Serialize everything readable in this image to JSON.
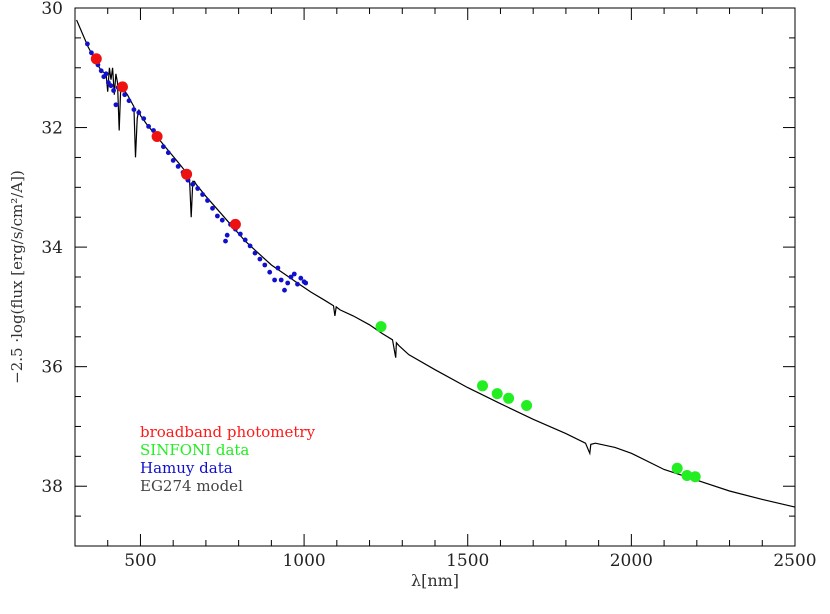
{
  "chart_data": {
    "type": "scatter",
    "title": "",
    "xlabel": "λ[nm]",
    "ylabel": "−2.5 ·log(flux [erg/s/cm²/A])",
    "xlim": [
      300,
      2500
    ],
    "ylim": [
      39,
      30
    ],
    "y_inverted": true,
    "x_ticks": [
      500,
      1000,
      1500,
      2000,
      2500
    ],
    "x_tick_labels": [
      "500",
      "1000",
      "1500",
      "2000",
      "2500"
    ],
    "y_ticks": [
      30,
      32,
      34,
      36,
      38
    ],
    "y_tick_labels": [
      "30",
      "32",
      "34",
      "36",
      "38"
    ],
    "grid": false,
    "legend_placement": "bottom-left",
    "legend": [
      {
        "label": "broadband photometry",
        "color": "#ff1a1a"
      },
      {
        "label": "SINFONI data",
        "color": "#22ee22"
      },
      {
        "label": "Hamuy data",
        "color": "#1010cc"
      },
      {
        "label": "EG274 model",
        "color": "#444444"
      }
    ],
    "series": [
      {
        "name": "broadband photometry",
        "kind": "points",
        "color": "#ee1111",
        "x": [
          365,
          445,
          551,
          641,
          790
        ],
        "y": [
          30.85,
          31.32,
          32.15,
          32.78,
          33.62
        ]
      },
      {
        "name": "SINFONI data",
        "kind": "points",
        "color": "#22ee22",
        "x": [
          1235,
          1545,
          1590,
          1625,
          1680,
          2140,
          2170,
          2195
        ],
        "y": [
          35.33,
          36.32,
          36.45,
          36.53,
          36.65,
          37.7,
          37.82,
          37.84
        ]
      },
      {
        "name": "Hamuy data",
        "kind": "dense-points",
        "color": "#1010cc",
        "x": [
          338,
          350,
          362,
          370,
          380,
          388,
          395,
          402,
          410,
          418,
          425,
          432,
          440,
          452,
          465,
          480,
          495,
          510,
          525,
          540,
          555,
          570,
          585,
          600,
          615,
          630,
          645,
          660,
          675,
          690,
          705,
          720,
          735,
          750,
          760,
          765,
          775,
          790,
          805,
          820,
          835,
          850,
          865,
          880,
          895,
          910,
          920,
          930,
          940,
          950,
          960,
          970,
          980,
          990,
          1000,
          1005
        ],
        "y": [
          30.6,
          30.75,
          30.88,
          30.95,
          31.05,
          31.15,
          31.1,
          31.25,
          31.3,
          31.38,
          31.62,
          31.33,
          31.3,
          31.45,
          31.55,
          31.7,
          31.75,
          31.85,
          31.98,
          32.05,
          32.18,
          32.32,
          32.42,
          32.55,
          32.65,
          32.75,
          32.88,
          32.95,
          33.02,
          33.12,
          33.22,
          33.35,
          33.48,
          33.55,
          33.9,
          33.8,
          33.62,
          33.7,
          33.78,
          33.88,
          33.98,
          34.1,
          34.2,
          34.3,
          34.42,
          34.55,
          34.35,
          34.55,
          34.72,
          34.6,
          34.5,
          34.45,
          34.62,
          34.52,
          34.58,
          34.6
        ]
      },
      {
        "name": "EG274 model",
        "kind": "line",
        "color": "#000000",
        "x": [
          305,
          340,
          360,
          380,
          395,
          400,
          405,
          410,
          415,
          420,
          425,
          430,
          435,
          440,
          460,
          480,
          485,
          490,
          495,
          500,
          520,
          550,
          580,
          610,
          640,
          650,
          655,
          660,
          665,
          670,
          700,
          740,
          780,
          820,
          860,
          900,
          940,
          980,
          1020,
          1060,
          1090,
          1094,
          1098,
          1110,
          1150,
          1200,
          1240,
          1270,
          1280,
          1282,
          1290,
          1320,
          1400,
          1500,
          1600,
          1700,
          1800,
          1860,
          1873,
          1876,
          1890,
          1950,
          2000,
          2100,
          2200,
          2300,
          2400,
          2500
        ],
        "y": [
          30.2,
          30.65,
          30.85,
          31.05,
          31.1,
          31.4,
          31.0,
          31.2,
          31.0,
          31.45,
          31.1,
          31.25,
          32.05,
          31.3,
          31.45,
          31.65,
          32.5,
          31.85,
          31.7,
          31.8,
          31.95,
          32.15,
          32.35,
          32.55,
          32.75,
          32.85,
          33.5,
          32.9,
          32.9,
          32.95,
          33.15,
          33.4,
          33.65,
          33.9,
          34.1,
          34.3,
          34.45,
          34.6,
          34.75,
          34.88,
          34.98,
          35.15,
          35.0,
          35.05,
          35.15,
          35.3,
          35.45,
          35.55,
          35.85,
          35.6,
          35.65,
          35.8,
          36.05,
          36.35,
          36.62,
          36.88,
          37.12,
          37.28,
          37.45,
          37.3,
          37.28,
          37.35,
          37.45,
          37.72,
          37.9,
          38.08,
          38.22,
          38.35
        ]
      }
    ]
  }
}
